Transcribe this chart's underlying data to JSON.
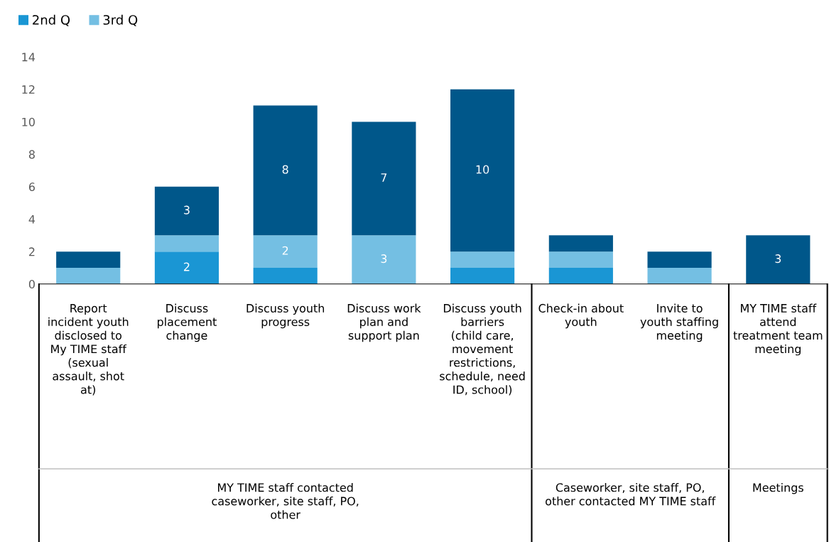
{
  "chart_data": {
    "type": "bar",
    "stacked": true,
    "legend": "top left",
    "categories": [
      "Report incident youth disclosed to My TIME staff (sexual assault, shot at)",
      "Discuss placement change",
      "Discuss youth progress",
      "Discuss work plan and support plan",
      "Discuss youth barriers (child care, movement restrictions, schedule, need ID, school)",
      "Check-in about youth",
      "Invite to youth staffing meeting",
      "MY TIME staff attend treatment team meeting"
    ],
    "series": [
      {
        "name": "2nd Q",
        "color": "#1a96d4",
        "values": [
          0,
          2,
          1,
          0,
          1,
          1,
          0,
          0
        ],
        "value_labels": [
          null,
          "2",
          null,
          null,
          null,
          null,
          null,
          null
        ]
      },
      {
        "name": "3rd Q",
        "color": "#74bfe3",
        "values": [
          1,
          1,
          2,
          3,
          1,
          1,
          1,
          0
        ],
        "value_labels": [
          null,
          null,
          "2",
          "3",
          null,
          null,
          null,
          null
        ]
      },
      {
        "color": "#00578a",
        "values": [
          1,
          3,
          8,
          7,
          10,
          1,
          1,
          3
        ],
        "value_labels": [
          null,
          "3",
          "8",
          "7",
          "10",
          null,
          null,
          "3"
        ]
      }
    ],
    "ylim": [
      0,
      14
    ],
    "yticks": [
      0,
      2,
      4,
      6,
      8,
      10,
      12,
      14
    ],
    "grid": false,
    "annotations": [
      "MY TIME staff contacted caseworker, site staff, PO, other",
      "Caseworker, site staff, PO, other contacted MY TIME staff",
      "Meetings"
    ]
  }
}
